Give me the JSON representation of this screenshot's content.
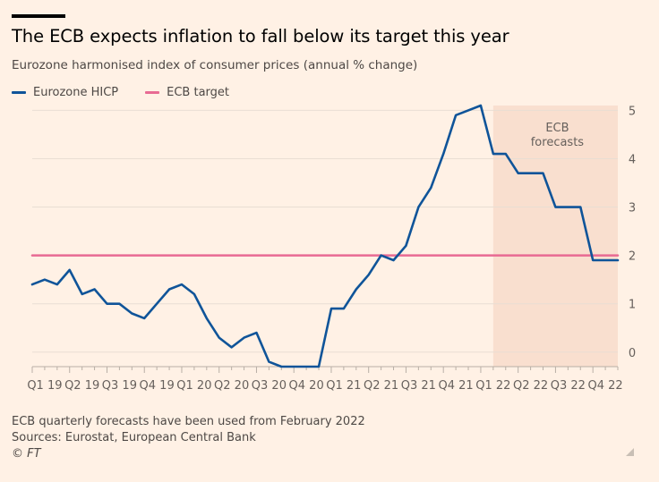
{
  "title": "The ECB expects inflation to fall below its target this year",
  "subtitle": "Eurozone harmonised index of consumer prices (annual % change)",
  "legend": {
    "hicp": "Eurozone HICP",
    "target": "ECB target"
  },
  "footer": {
    "note": "ECB quarterly forecasts have been used from February 2022",
    "sources": "Sources: Eurostat, European Central Bank",
    "credit": "© FT"
  },
  "colors": {
    "background": "#FFF1E5",
    "hicp": "#0F5499",
    "target": "#E86A93",
    "forecast_band": "#F9DFCF",
    "grid": "#E9DED3",
    "axis": "#66605C"
  },
  "chart_data": {
    "type": "line",
    "title": "The ECB expects inflation to fall below its target this year",
    "ylabel": "Eurozone harmonised index of consumer prices (annual % change)",
    "ylim": [
      -0.3,
      5.1
    ],
    "yticks": [
      0,
      1,
      2,
      3,
      4,
      5
    ],
    "y_axis_side": "right",
    "grid": true,
    "legend_position": "top-left",
    "x_tick_labels": [
      "Q1 19",
      "Q2 19",
      "Q3 19",
      "Q4 19",
      "Q1 20",
      "Q2 20",
      "Q3 20",
      "Q4 20",
      "Q1 21",
      "Q2 21",
      "Q3 21",
      "Q4 21",
      "Q1 22",
      "Q2 22",
      "Q3 22",
      "Q4 22"
    ],
    "x_range_months": [
      0,
      47
    ],
    "forecast_region": {
      "start_month": 37,
      "end_month": 47,
      "label": [
        "ECB",
        "forecasts"
      ]
    },
    "target_value": 2,
    "series": [
      {
        "name": "Eurozone HICP",
        "x_months": [
          0,
          1,
          2,
          3,
          4,
          5,
          6,
          7,
          8,
          9,
          10,
          11,
          12,
          13,
          14,
          15,
          16,
          17,
          18,
          19,
          20,
          21,
          22,
          23,
          24,
          25,
          26,
          27,
          28,
          29,
          30,
          31,
          32,
          33,
          34,
          35,
          36,
          37,
          38,
          39,
          40,
          41,
          42,
          43,
          44,
          45,
          46,
          47
        ],
        "values": [
          1.4,
          1.5,
          1.4,
          1.7,
          1.2,
          1.3,
          1.0,
          1.0,
          0.8,
          0.7,
          1.0,
          1.3,
          1.4,
          1.2,
          0.7,
          0.3,
          0.1,
          0.3,
          0.4,
          -0.2,
          -0.3,
          -0.3,
          -0.3,
          -0.3,
          0.9,
          0.9,
          1.3,
          1.6,
          2.0,
          1.9,
          2.2,
          3.0,
          3.4,
          4.1,
          4.9,
          5.0,
          5.1,
          4.1,
          4.1,
          3.7,
          3.7,
          3.7,
          3.0,
          3.0,
          3.0,
          1.9,
          1.9,
          1.9
        ]
      },
      {
        "name": "ECB target",
        "x_months": [
          0,
          47
        ],
        "values": [
          2,
          2
        ]
      }
    ]
  }
}
